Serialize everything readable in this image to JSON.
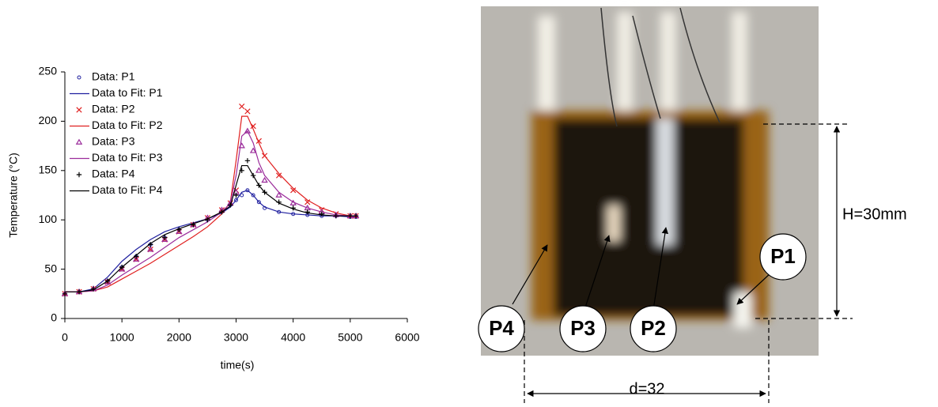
{
  "chart_data": {
    "type": "line",
    "xlabel": "time(s)",
    "ylabel": "Temperature (°C)",
    "x": [
      0,
      250,
      500,
      750,
      1000,
      1250,
      1500,
      1750,
      2000,
      2250,
      2500,
      2750,
      2900,
      3000,
      3100,
      3200,
      3300,
      3400,
      3500,
      3750,
      4000,
      4250,
      4500,
      4750,
      5000,
      5100
    ],
    "xlim": [
      0,
      6000
    ],
    "xticks": [
      0,
      1000,
      2000,
      3000,
      4000,
      5000,
      6000
    ],
    "ylim": [
      0,
      250
    ],
    "yticks": [
      0,
      50,
      100,
      150,
      200,
      250
    ],
    "series": [
      {
        "name": "Data: P1",
        "color": "#1f1f9f",
        "style": "markers",
        "marker": "circle",
        "values": [
          25,
          27,
          30,
          38,
          52,
          63,
          75,
          82,
          90,
          95,
          100,
          108,
          115,
          120,
          125,
          130,
          125,
          118,
          112,
          108,
          106,
          105,
          104,
          104,
          103,
          103
        ]
      },
      {
        "name": "Data to Fit: P1",
        "color": "#1f1f9f",
        "style": "line",
        "values": [
          27,
          27,
          30,
          42,
          58,
          70,
          80,
          88,
          93,
          97,
          101,
          107,
          113,
          120,
          128,
          130,
          125,
          118,
          113,
          108,
          106,
          105,
          104,
          104,
          103,
          103
        ]
      },
      {
        "name": "Data: P2",
        "color": "#e02020",
        "style": "markers",
        "marker": "x",
        "values": [
          25,
          27,
          30,
          37,
          50,
          60,
          70,
          80,
          88,
          95,
          102,
          110,
          117,
          130,
          215,
          210,
          195,
          180,
          165,
          145,
          130,
          118,
          110,
          106,
          104,
          104
        ]
      },
      {
        "name": "Data to Fit: P2",
        "color": "#e02020",
        "style": "line",
        "values": [
          27,
          27,
          28,
          32,
          40,
          48,
          56,
          65,
          74,
          83,
          93,
          106,
          118,
          160,
          205,
          205,
          192,
          178,
          165,
          147,
          132,
          120,
          112,
          107,
          104,
          104
        ]
      },
      {
        "name": "Data: P3",
        "color": "#9b2c9b",
        "style": "markers",
        "marker": "triangle",
        "values": [
          25,
          27,
          30,
          37,
          50,
          60,
          70,
          80,
          88,
          95,
          102,
          110,
          117,
          128,
          175,
          190,
          170,
          150,
          140,
          125,
          117,
          112,
          108,
          105,
          104,
          104
        ]
      },
      {
        "name": "Data to Fit: P3",
        "color": "#9b2c9b",
        "style": "line",
        "values": [
          27,
          27,
          28,
          34,
          44,
          53,
          62,
          72,
          82,
          90,
          98,
          108,
          117,
          145,
          185,
          190,
          178,
          158,
          145,
          128,
          118,
          112,
          108,
          105,
          104,
          104
        ]
      },
      {
        "name": "Data: P4",
        "color": "#000000",
        "style": "markers",
        "marker": "plus",
        "values": [
          25,
          27,
          30,
          38,
          52,
          63,
          75,
          82,
          90,
          95,
          100,
          108,
          115,
          125,
          150,
          160,
          145,
          135,
          128,
          118,
          112,
          108,
          106,
          104,
          104,
          104
        ]
      },
      {
        "name": "Data to Fit: P4",
        "color": "#000000",
        "style": "line",
        "values": [
          27,
          27,
          29,
          38,
          52,
          64,
          76,
          85,
          91,
          96,
          101,
          108,
          114,
          135,
          155,
          155,
          145,
          135,
          128,
          117,
          111,
          107,
          105,
          104,
          104,
          104
        ]
      }
    ]
  },
  "photo": {
    "labels": [
      "P1",
      "P2",
      "P3",
      "P4"
    ],
    "height_label": "H=30mm",
    "width_label": "d=32"
  }
}
